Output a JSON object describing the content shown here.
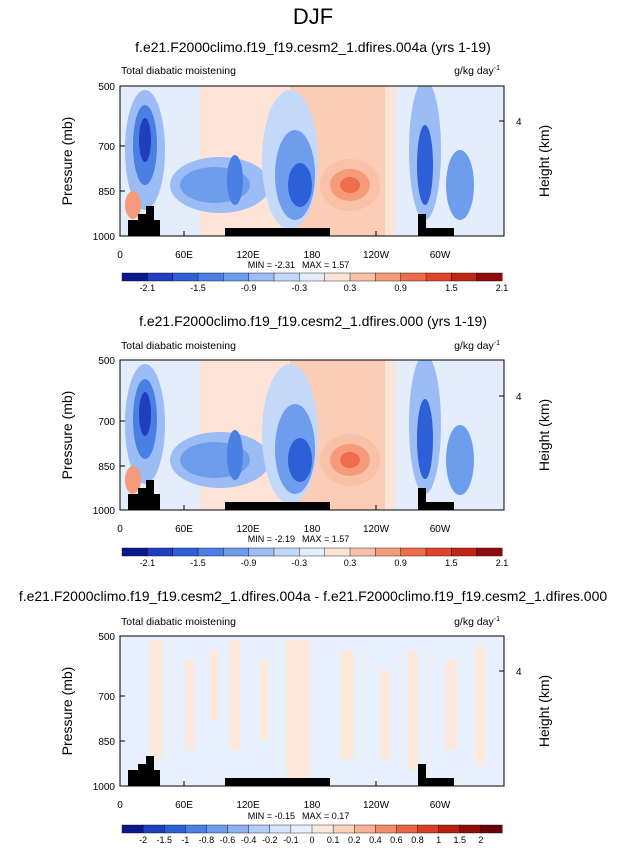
{
  "figure": {
    "title": "DJF"
  },
  "chart_data": [
    {
      "type": "heatmap",
      "title": "f.e21.F2000climo.f19_f19.cesm2_1.dfires.004a (yrs 1-19)",
      "left_label": "Total diabatic moistening",
      "units": "g/kg day",
      "units_exp": "-1",
      "ylabel": "Pressure (mb)",
      "ylabel_right": "Height (km)",
      "y_ticks": [
        "500",
        "700",
        "850",
        "1000"
      ],
      "y_right_ticks": [
        "4"
      ],
      "x_ticks": [
        "0",
        "60E",
        "120E",
        "180",
        "120W",
        "60W"
      ],
      "min_text": "MIN = -2.31",
      "max_text": "MAX =  1.57",
      "colorbar_labels": [
        "-2.1",
        "-1.5",
        "-0.9",
        "-0.3",
        "0.3",
        "0.9",
        "1.5",
        "2.1"
      ],
      "colorbar_colors": [
        "#0a1a8c",
        "#1f3fbf",
        "#2d5fd6",
        "#4a7fe3",
        "#6f9ded",
        "#9bbcf5",
        "#c4d8fa",
        "#e3edfc",
        "#fde4d6",
        "#f9c2a8",
        "#f59b7a",
        "#ee6d4a",
        "#e0442a",
        "#c02516",
        "#8e0c0a"
      ],
      "range": [
        -2.31,
        1.57
      ]
    },
    {
      "type": "heatmap",
      "title": "f.e21.F2000climo.f19_f19.cesm2_1.dfires.000 (yrs 1-19)",
      "left_label": "Total diabatic moistening",
      "units": "g/kg day",
      "units_exp": "-1",
      "ylabel": "Pressure (mb)",
      "ylabel_right": "Height (km)",
      "y_ticks": [
        "500",
        "700",
        "850",
        "1000"
      ],
      "y_right_ticks": [
        "4"
      ],
      "x_ticks": [
        "0",
        "60E",
        "120E",
        "180",
        "120W",
        "60W"
      ],
      "min_text": "MIN = -2.19",
      "max_text": "MAX =  1.57",
      "colorbar_labels": [
        "-2.1",
        "-1.5",
        "-0.9",
        "-0.3",
        "0.3",
        "0.9",
        "1.5",
        "2.1"
      ],
      "colorbar_colors": [
        "#0a1a8c",
        "#1f3fbf",
        "#2d5fd6",
        "#4a7fe3",
        "#6f9ded",
        "#9bbcf5",
        "#c4d8fa",
        "#e3edfc",
        "#fde4d6",
        "#f9c2a8",
        "#f59b7a",
        "#ee6d4a",
        "#e0442a",
        "#c02516",
        "#8e0c0a"
      ],
      "range": [
        -2.19,
        1.57
      ]
    },
    {
      "type": "heatmap",
      "title": "f.e21.F2000climo.f19_f19.cesm2_1.dfires.004a - f.e21.F2000climo.f19_f19.cesm2_1.dfires.000",
      "left_label": "Total diabatic moistening",
      "units": "g/kg day",
      "units_exp": "-1",
      "ylabel": "Pressure (mb)",
      "ylabel_right": "Height (km)",
      "y_ticks": [
        "500",
        "700",
        "850",
        "1000"
      ],
      "y_right_ticks": [
        "4"
      ],
      "x_ticks": [
        "0",
        "60E",
        "120E",
        "180",
        "120W",
        "60W"
      ],
      "min_text": "MIN = -0.15",
      "max_text": "MAX =  0.17",
      "colorbar_labels": [
        "-2",
        "-1.5",
        "-1",
        "-0.8",
        "-0.6",
        "-0.4",
        "-0.2",
        "-0.1",
        "0",
        "0.1",
        "0.2",
        "0.4",
        "0.6",
        "0.8",
        "1",
        "1.5",
        "2"
      ],
      "colorbar_colors": [
        "#0a1a8c",
        "#1f3fbf",
        "#2d5fd6",
        "#4a7fe3",
        "#6f9ded",
        "#8fb3f2",
        "#b3cdf7",
        "#d6e5fb",
        "#e8f0fd",
        "#fde8dc",
        "#fbd2bb",
        "#f7b294",
        "#f28d6a",
        "#ea6444",
        "#d83e26",
        "#b92014",
        "#8e0c0a",
        "#6a0506"
      ],
      "range": [
        -0.15,
        0.17
      ]
    }
  ]
}
